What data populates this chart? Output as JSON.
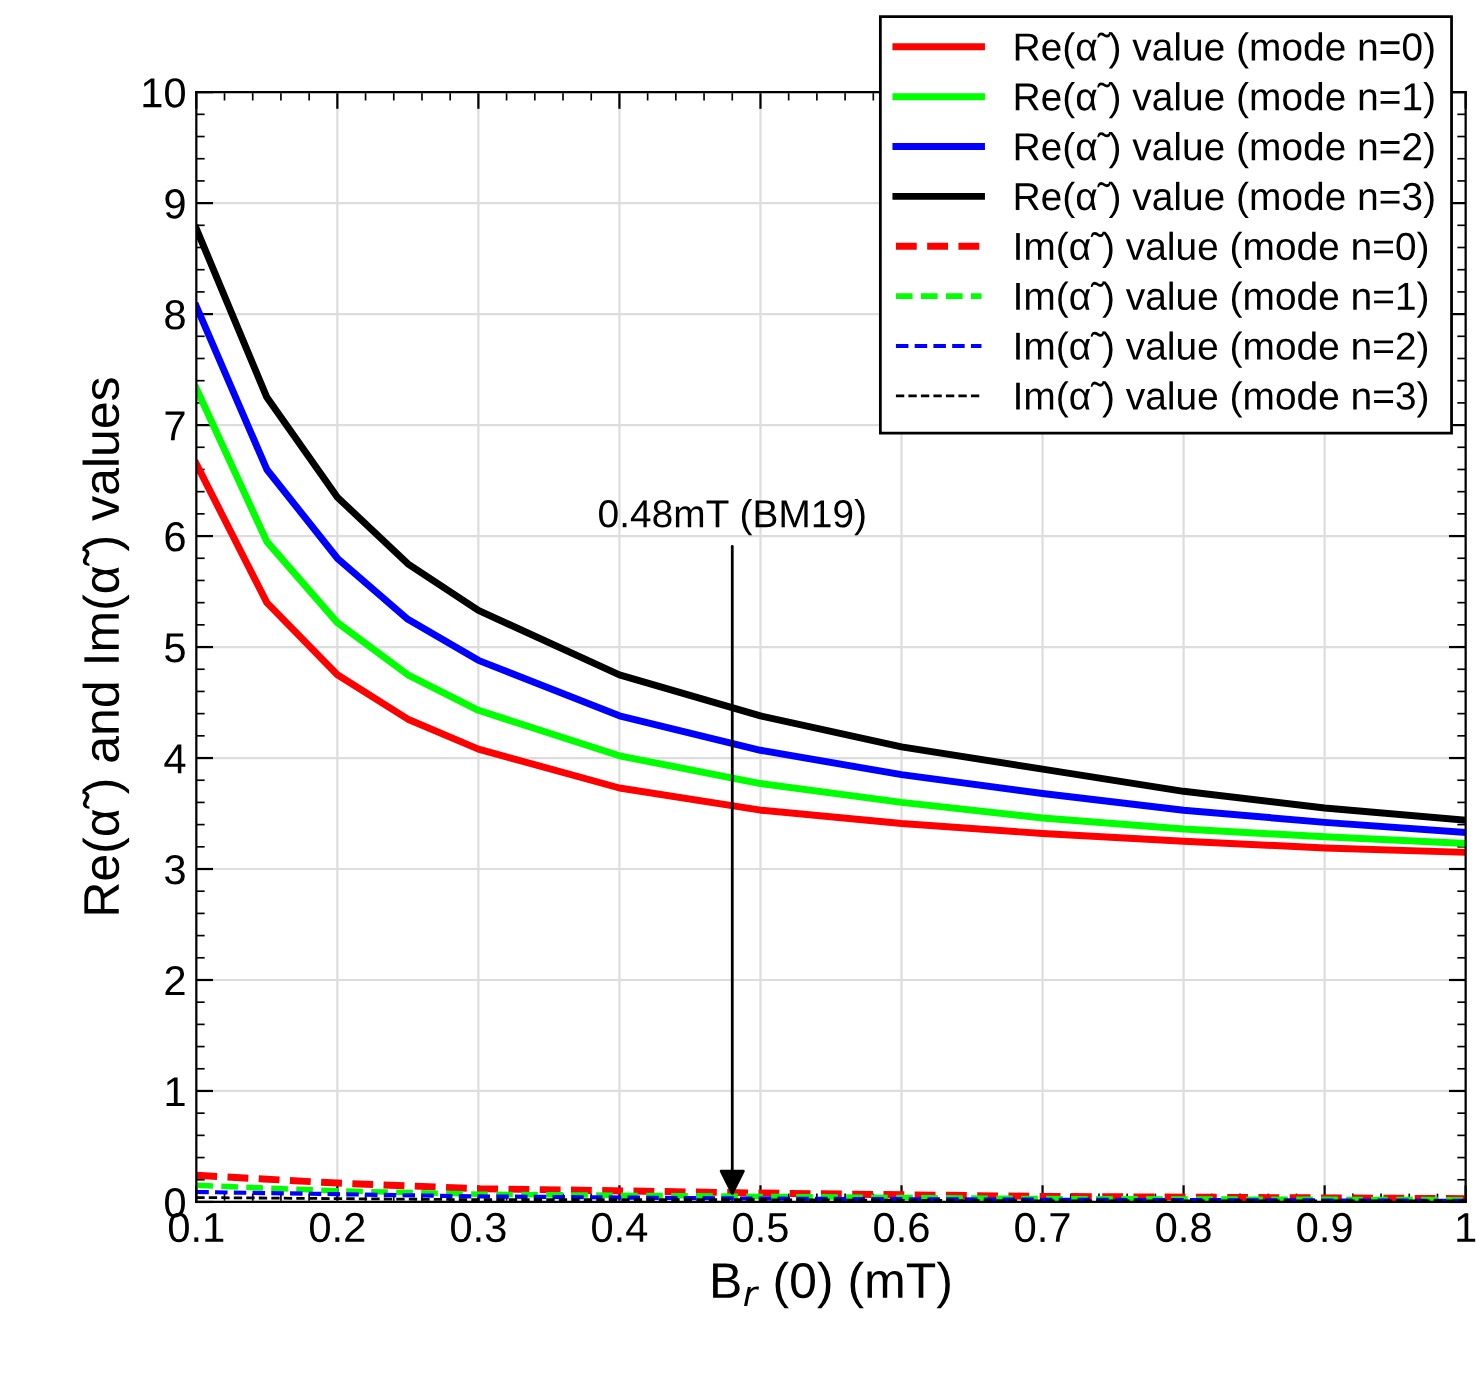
{
  "chart_data": {
    "type": "line",
    "xlabel": "B$_{r}$ (0) (mT)",
    "ylabel": "Re(α̃ ) and Im(α̃ ) values",
    "xlim": [
      0.1,
      1
    ],
    "ylim": [
      0,
      10
    ],
    "xticks": [
      0.1,
      0.2,
      0.3,
      0.4,
      0.5,
      0.6,
      0.7,
      0.8,
      0.9,
      1
    ],
    "yticks": [
      0,
      1,
      2,
      3,
      4,
      5,
      6,
      7,
      8,
      9,
      10
    ],
    "grid": true,
    "legend": "top right",
    "marker": "none",
    "x": [
      0.1,
      0.15,
      0.2,
      0.25,
      0.3,
      0.4,
      0.5,
      0.6,
      0.7,
      0.8,
      0.9,
      1.0
    ],
    "series": [
      {
        "name": "Re(α̃ ) value (mode n=0)",
        "color": "#ff0000",
        "line_style": "solid",
        "values": [
          6.65,
          5.4,
          4.75,
          4.35,
          4.08,
          3.73,
          3.53,
          3.41,
          3.32,
          3.25,
          3.19,
          3.15
        ]
      },
      {
        "name": "Re(α̃ ) value (mode n=1)",
        "color": "#00ff00",
        "line_style": "solid",
        "values": [
          7.33,
          5.95,
          5.22,
          4.75,
          4.43,
          4.02,
          3.77,
          3.6,
          3.46,
          3.36,
          3.29,
          3.23
        ]
      },
      {
        "name": "Re(α̃ ) value (mode n=2)",
        "color": "#0000ff",
        "line_style": "solid",
        "values": [
          8.07,
          6.6,
          5.8,
          5.25,
          4.88,
          4.38,
          4.07,
          3.85,
          3.68,
          3.53,
          3.42,
          3.33
        ]
      },
      {
        "name": "Re(α̃ ) value (mode n=3)",
        "color": "#000000",
        "line_style": "solid",
        "values": [
          8.77,
          7.25,
          6.35,
          5.75,
          5.33,
          4.75,
          4.38,
          4.1,
          3.9,
          3.7,
          3.55,
          3.44
        ]
      },
      {
        "name": "Im(α̃ ) value (mode n=0)",
        "color": "#ff0000",
        "line_style": "dashed",
        "x": [
          0.1,
          0.2,
          0.3,
          0.5,
          0.7,
          1.0
        ],
        "values": [
          0.24,
          0.17,
          0.12,
          0.08,
          0.05,
          0.03
        ]
      },
      {
        "name": "Im(α̃ ) value (mode n=1)",
        "color": "#00ff00",
        "line_style": "dashed",
        "x": [
          0.1,
          0.2,
          0.3,
          0.5,
          0.7,
          1.0
        ],
        "values": [
          0.15,
          0.1,
          0.07,
          0.05,
          0.03,
          0.02
        ]
      },
      {
        "name": "Im(α̃ ) value (mode n=2)",
        "color": "#0000ff",
        "line_style": "dashed",
        "x": [
          0.1,
          0.2,
          0.3,
          0.5,
          0.7,
          1.0
        ],
        "values": [
          0.09,
          0.07,
          0.05,
          0.03,
          0.02,
          0.01
        ]
      },
      {
        "name": "Im(α̃ ) value (mode n=3)",
        "color": "#000000",
        "line_style": "dashed",
        "x": [
          0.1,
          0.2,
          0.3,
          0.5,
          0.7,
          1.0
        ],
        "values": [
          0.04,
          0.03,
          0.02,
          0.02,
          0.01,
          0.01
        ]
      }
    ],
    "annotations": [
      {
        "text": "0.48mT (BM19)",
        "x": 0.48,
        "y": 0
      }
    ]
  }
}
